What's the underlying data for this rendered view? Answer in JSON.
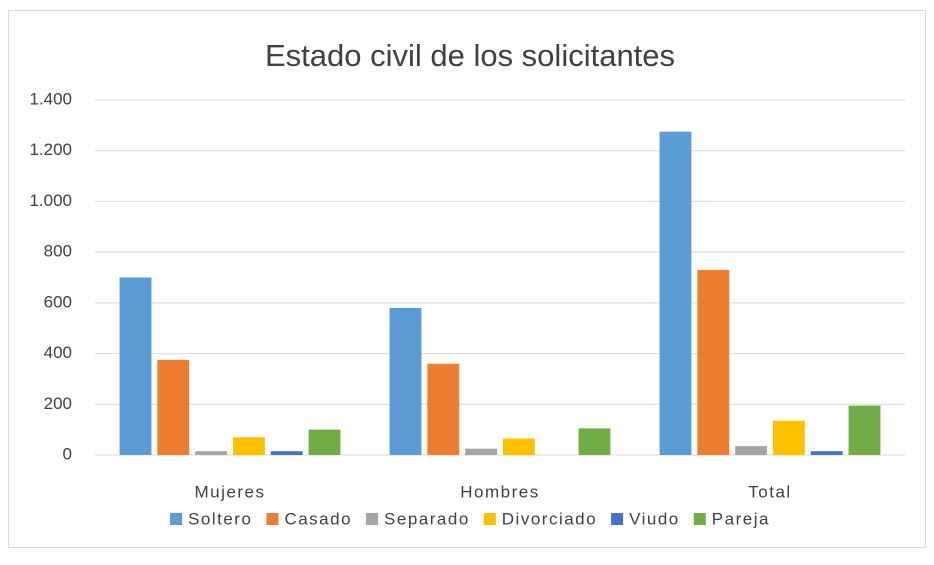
{
  "chart_data": {
    "type": "bar",
    "title": "Estado civil de los solicitantes",
    "categories": [
      "Mujeres",
      "Hombres",
      "Total"
    ],
    "series": [
      {
        "name": "Soltero",
        "color": "#5b9bd5",
        "values": [
          700,
          580,
          1275
        ]
      },
      {
        "name": "Casado",
        "color": "#ed7d31",
        "values": [
          375,
          360,
          730
        ]
      },
      {
        "name": "Separado",
        "color": "#a5a5a5",
        "values": [
          15,
          25,
          35
        ]
      },
      {
        "name": "Divorciado",
        "color": "#ffc000",
        "values": [
          70,
          65,
          135
        ]
      },
      {
        "name": "Viudo",
        "color": "#4472c4",
        "values": [
          15,
          0,
          15
        ]
      },
      {
        "name": "Pareja",
        "color": "#70ad47",
        "values": [
          100,
          105,
          195
        ]
      }
    ],
    "ylim": [
      0,
      1400
    ],
    "yticks": [
      0,
      200,
      400,
      600,
      800,
      {
        "value": 1000,
        "label": "1.000"
      },
      {
        "value": 1200,
        "label": "1.200"
      },
      {
        "value": 1400,
        "label": "1.400"
      }
    ],
    "grid": true,
    "legend": "bottom"
  }
}
